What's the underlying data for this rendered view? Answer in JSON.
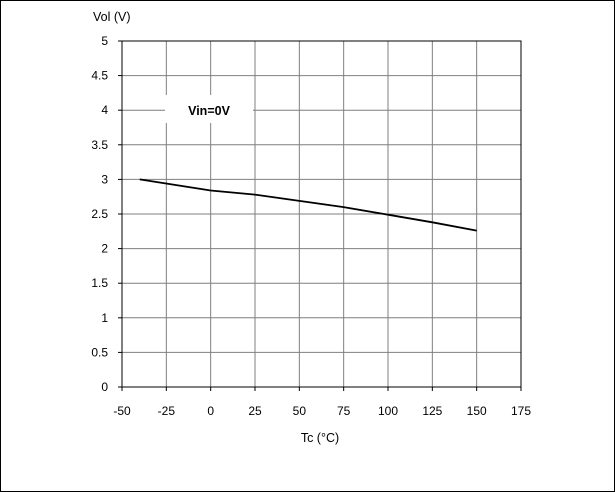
{
  "chart_data": {
    "type": "line",
    "title": "",
    "ylabel": "Vol (V)",
    "xlabel": "Tc (°C)",
    "xlim": [
      -50,
      175
    ],
    "ylim": [
      0,
      5
    ],
    "x_ticks": [
      "-50",
      "-25",
      "0",
      "25",
      "50",
      "75",
      "100",
      "125",
      "150",
      "175"
    ],
    "y_ticks": [
      "0",
      "0.5",
      "1",
      "1.5",
      "2",
      "2.5",
      "3",
      "3.5",
      "4",
      "4.5",
      "5"
    ],
    "grid": true,
    "annotation": "Vin=0V",
    "series": [
      {
        "x": [
          -40,
          0,
          25,
          50,
          75,
          100,
          125,
          150
        ],
        "y": [
          3.0,
          2.84,
          2.78,
          2.69,
          2.6,
          2.49,
          2.38,
          2.26
        ]
      }
    ],
    "colors": {
      "line": "#000000",
      "grid": "#7f7f7f",
      "axis": "#000000"
    }
  }
}
